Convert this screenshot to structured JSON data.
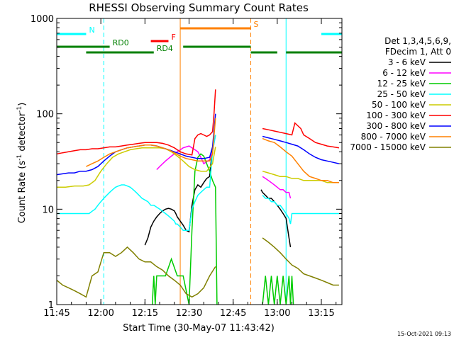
{
  "chart_data": {
    "type": "line",
    "title": "RHESSI Observing Summary Count Rates",
    "xlabel": "Start Time (30-May-07 11:43:42)",
    "ylabel": "Count Rate (s",
    "ylabel_sup1": "-1",
    "ylabel_mid": " detector",
    "ylabel_sup2": "-1",
    "ylabel_end": ")",
    "date_stamp": "15-Oct-2021 09:13",
    "xlim_minutes": [
      0,
      97
    ],
    "ylim": [
      1,
      1000
    ],
    "y_scale": "log",
    "x_ticks": [
      {
        "m": 0,
        "label": "11:45"
      },
      {
        "m": 15,
        "label": "12:00"
      },
      {
        "m": 30,
        "label": "12:15"
      },
      {
        "m": 45,
        "label": "12:30"
      },
      {
        "m": 60,
        "label": "12:45"
      },
      {
        "m": 75,
        "label": "13:00"
      },
      {
        "m": 90,
        "label": "13:15"
      }
    ],
    "y_ticks": [
      {
        "v": 1,
        "label": "1"
      },
      {
        "v": 10,
        "label": "10"
      },
      {
        "v": 100,
        "label": "100"
      },
      {
        "v": 1000,
        "label": "1000"
      }
    ],
    "legend_header": [
      "Det 1,3,4,5,6,9,",
      "FDecim 1, Att 0"
    ],
    "series": [
      {
        "name": "3 - 6 keV",
        "color": "#000000",
        "x": [
          30,
          31,
          32,
          33,
          34,
          35,
          36,
          37,
          38,
          39,
          40,
          40.5,
          41,
          42,
          43,
          44,
          45,
          46,
          47,
          48,
          49,
          50,
          51,
          52,
          53,
          54,
          55,
          56,
          57,
          58,
          59,
          60,
          61,
          62,
          63,
          64,
          65,
          66,
          67,
          69.5,
          70,
          71,
          72,
          73,
          74,
          75,
          76,
          77,
          78,
          79,
          79.5
        ],
        "y": [
          4.2,
          5,
          6.5,
          7.5,
          8.3,
          9,
          9.6,
          10,
          10.2,
          10,
          9.6,
          9,
          8.3,
          7.5,
          6.8,
          6,
          5.8,
          11,
          16,
          18,
          17,
          19,
          21,
          22,
          45,
          null,
          null,
          null,
          null,
          null,
          null,
          null,
          null,
          null,
          null,
          null,
          null,
          null,
          null,
          16,
          15,
          14,
          13,
          13,
          12,
          11,
          10,
          9,
          8,
          5,
          4
        ]
      },
      {
        "name": "6 - 12 keV",
        "color": "#ff00ff",
        "x": [
          34,
          35,
          37,
          39,
          41,
          43,
          45,
          47,
          48,
          49,
          50,
          52,
          53,
          54,
          69.5,
          70,
          71,
          72,
          73,
          74,
          75,
          76,
          77,
          78,
          79,
          79.5
        ],
        "y": [
          26,
          28,
          32,
          36,
          40,
          44,
          46,
          42,
          40,
          35,
          30,
          33,
          40,
          60,
          null,
          22,
          21,
          20,
          19,
          18,
          17,
          16,
          16,
          15,
          15,
          13
        ]
      },
      {
        "name": "12 - 25 keV",
        "color": "#00cc00",
        "x": [
          32.5,
          33,
          33.5,
          34,
          35,
          37,
          39,
          41,
          43,
          45,
          46,
          47,
          48,
          49,
          50,
          51,
          52,
          53,
          54,
          54.5,
          69.5,
          70,
          71,
          72,
          73,
          74,
          75,
          76,
          77,
          78,
          79,
          79.5,
          80,
          80.5
        ],
        "y": [
          1,
          2,
          1,
          2,
          2,
          2,
          3,
          2,
          2,
          1,
          6,
          25,
          35,
          38,
          36,
          30,
          25,
          20,
          17,
          1,
          null,
          1,
          2,
          1,
          2,
          1,
          2,
          1,
          2,
          1,
          2,
          1,
          2,
          1
        ]
      },
      {
        "name": "25 - 50 keV",
        "color": "#00ffff",
        "x": [
          0,
          1,
          2,
          3,
          4,
          5,
          6,
          7,
          8,
          9,
          10,
          11,
          12,
          13,
          14,
          15,
          16,
          17,
          18,
          19,
          20,
          21,
          22,
          23,
          24,
          25,
          26,
          27,
          28,
          29,
          30,
          31,
          32,
          33,
          34,
          35,
          36,
          37,
          38,
          39,
          40,
          40.5,
          41,
          42,
          43,
          44,
          45,
          46,
          47,
          48,
          49,
          50,
          51,
          52,
          53,
          54,
          69.5,
          70,
          71,
          72,
          73,
          74,
          75,
          76,
          77,
          78,
          79,
          79.5,
          80,
          81,
          82,
          83,
          84,
          85,
          86,
          87,
          88,
          89,
          90,
          91,
          92,
          93,
          94,
          95,
          96
        ],
        "y": [
          9,
          9,
          9,
          9,
          9,
          9,
          9,
          9,
          9,
          9,
          9,
          9,
          9.5,
          10,
          11,
          12,
          13,
          14,
          15,
          16,
          17,
          17.5,
          18,
          18,
          17.5,
          17,
          16,
          15,
          14,
          13,
          12.5,
          12,
          11,
          11,
          10.5,
          10,
          9.5,
          9,
          8.5,
          8,
          7.5,
          7,
          7,
          6.5,
          6,
          6,
          6,
          10,
          12,
          14,
          15,
          16,
          17,
          17,
          40,
          60,
          null,
          14,
          13,
          13,
          12,
          12,
          11,
          11,
          10,
          9,
          8,
          7,
          9,
          9,
          9,
          9,
          9,
          9,
          9,
          9,
          9,
          9,
          9,
          9,
          9,
          9,
          9,
          9,
          9
        ]
      },
      {
        "name": "50 - 100 keV",
        "color": "#cccc00",
        "x": [
          0,
          3,
          6,
          9,
          11,
          13,
          15,
          17,
          19,
          21,
          23,
          25,
          27,
          29,
          31,
          33,
          35,
          37,
          39,
          41,
          43,
          45,
          47,
          49,
          51,
          53,
          54,
          69.5,
          70,
          72,
          74,
          76,
          78,
          80,
          82,
          84,
          86,
          88,
          90,
          92,
          94,
          96
        ],
        "y": [
          17,
          17,
          17.5,
          17.5,
          18,
          20,
          25,
          30,
          35,
          38,
          40,
          42,
          43,
          44,
          44,
          44,
          44,
          43,
          40,
          36,
          32,
          28,
          26,
          25,
          25,
          30,
          45,
          null,
          25,
          24,
          23,
          22,
          22,
          21,
          21,
          20,
          20,
          20,
          20,
          19,
          19,
          19
        ]
      },
      {
        "name": "100 - 300 keV",
        "color": "#ff0000",
        "x": [
          0,
          2,
          4,
          6,
          8,
          10,
          12,
          14,
          16,
          18,
          20,
          22,
          24,
          26,
          28,
          30,
          32,
          34,
          36,
          38,
          40,
          42,
          44,
          46,
          47,
          48,
          49,
          50,
          51,
          52,
          53,
          53.5,
          54,
          69.5,
          70,
          72,
          74,
          76,
          78,
          80,
          81,
          82,
          83,
          84,
          86,
          88,
          90,
          92,
          94,
          96
        ],
        "y": [
          38,
          39,
          40,
          41,
          42,
          42,
          43,
          43,
          44,
          45,
          45,
          46,
          47,
          48,
          49,
          50,
          50,
          50,
          49,
          47,
          44,
          40,
          38,
          37,
          55,
          60,
          62,
          60,
          58,
          60,
          65,
          100,
          180,
          null,
          70,
          68,
          66,
          64,
          62,
          60,
          80,
          75,
          70,
          60,
          55,
          50,
          48,
          46,
          45,
          44
        ]
      },
      {
        "name": "300 - 800 keV",
        "color": "#0000ff",
        "x": [
          0,
          2,
          4,
          6,
          8,
          10,
          12,
          14,
          16,
          18,
          20,
          22,
          24,
          26,
          28,
          30,
          32,
          34,
          36,
          38,
          40,
          42,
          44,
          46,
          48,
          50,
          52,
          53,
          54,
          69.5,
          70,
          72,
          74,
          76,
          78,
          80,
          82,
          84,
          86,
          88,
          90,
          92,
          94,
          96
        ],
        "y": [
          23,
          23.5,
          24,
          24,
          25,
          25,
          26,
          28,
          32,
          36,
          40,
          42,
          44,
          45,
          46,
          47,
          47,
          46,
          44,
          42,
          40,
          38,
          36,
          35,
          34,
          34,
          35,
          45,
          100,
          null,
          58,
          56,
          54,
          52,
          50,
          48,
          46,
          42,
          38,
          35,
          33,
          32,
          31,
          30
        ]
      },
      {
        "name": "800 - 7000 keV",
        "color": "#ff8000",
        "x": [
          10,
          12,
          14,
          16,
          18,
          20,
          22,
          24,
          26,
          28,
          30,
          32,
          34,
          36,
          38,
          40,
          42,
          44,
          46,
          48,
          50,
          52,
          53,
          54,
          69.5,
          70,
          72,
          74,
          76,
          78,
          80,
          82,
          84,
          86,
          88,
          90,
          92,
          94,
          96
        ],
        "y": [
          28,
          30,
          32,
          35,
          38,
          40,
          42,
          44,
          45,
          46,
          47,
          47,
          46,
          44,
          42,
          39,
          36,
          34,
          33,
          32,
          32,
          32,
          38,
          90,
          null,
          55,
          52,
          50,
          45,
          40,
          36,
          30,
          25,
          22,
          21,
          20,
          20,
          19,
          19
        ]
      },
      {
        "name": "7000 - 15000 keV",
        "color": "#808000",
        "x": [
          0,
          2,
          4,
          6,
          8,
          10,
          12,
          14,
          16,
          18,
          20,
          22,
          24,
          26,
          28,
          30,
          32,
          34,
          36,
          38,
          40,
          42,
          44,
          46,
          48,
          50,
          52,
          54,
          69.5,
          70,
          72,
          74,
          76,
          78,
          80,
          82,
          84,
          86,
          88,
          90,
          92,
          94,
          96
        ],
        "y": [
          1.8,
          1.6,
          1.5,
          1.4,
          1.3,
          1.2,
          2,
          2.2,
          3.5,
          3.5,
          3.2,
          3.5,
          4,
          3.5,
          3,
          2.8,
          2.8,
          2.5,
          2.3,
          2,
          1.8,
          1.6,
          1.3,
          1.2,
          1.3,
          1.5,
          2,
          2.5,
          null,
          5,
          4.5,
          4,
          3.5,
          3,
          2.6,
          2.4,
          2.1,
          2,
          1.9,
          1.8,
          1.7,
          1.6,
          1.6
        ]
      }
    ],
    "flags": [
      {
        "label": "N",
        "color": "#00ffff",
        "segments": [
          [
            0,
            10
          ],
          [
            90,
            97
          ]
        ],
        "level": 0,
        "vlines_solid": [
          0,
          78
        ],
        "vlines_dashed": [
          16,
          97
        ]
      },
      {
        "label": "S",
        "color": "#ff8000",
        "segments": [
          [
            42,
            66
          ]
        ],
        "level": 1,
        "vlines_solid": [
          42
        ],
        "vlines_dashed": [
          66
        ]
      },
      {
        "label": "F",
        "color": "#ff0000",
        "segments": [
          [
            32,
            38
          ]
        ],
        "level": 2
      },
      {
        "label": "RD0",
        "color": "#008000",
        "segments": [
          [
            0,
            18
          ],
          [
            43,
            66
          ]
        ],
        "level": 3
      },
      {
        "label": "RD4",
        "color": "#008000",
        "segments": [
          [
            10,
            33
          ],
          [
            66,
            75
          ],
          [
            78,
            97
          ]
        ],
        "level": 4
      }
    ]
  }
}
